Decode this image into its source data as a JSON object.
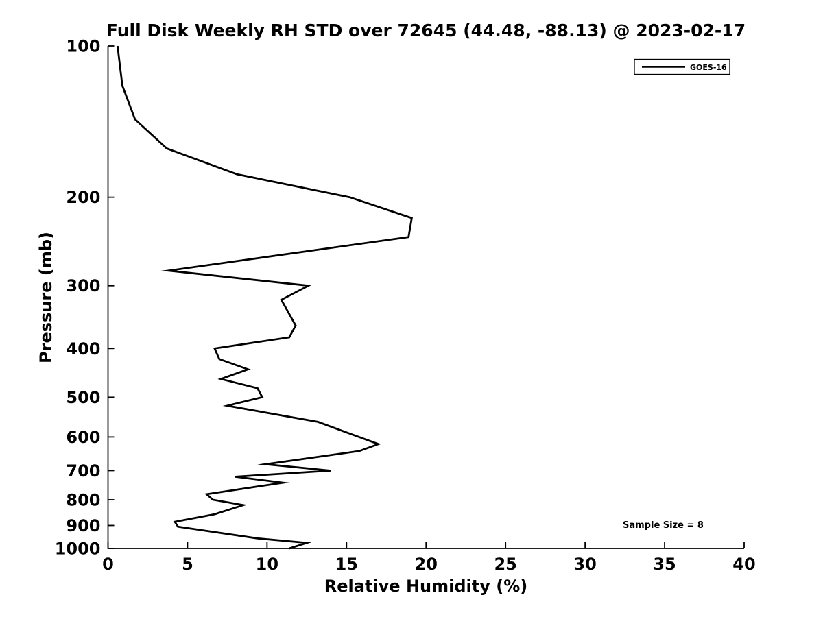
{
  "window": {
    "background": "#ffffff",
    "foreground": "#000000"
  },
  "chart_data": {
    "type": "line",
    "title": "Full Disk Weekly RH STD over 72645 (44.48, -88.13) @ 2023-02-17",
    "xlabel": "Relative Humidity (%)",
    "ylabel": "Pressure (mb)",
    "xlim": [
      0,
      40
    ],
    "xticks": [
      0,
      5,
      10,
      15,
      20,
      25,
      30,
      35,
      40
    ],
    "yscale": "log",
    "y_inverted": true,
    "ylim": [
      100,
      1000
    ],
    "yticks": [
      100,
      200,
      300,
      400,
      500,
      600,
      700,
      800,
      900,
      1000
    ],
    "grid": false,
    "axis_color": "#000000",
    "legend": {
      "position": "top-right",
      "entries": [
        {
          "label": "GOES-16",
          "color": "#000000"
        }
      ]
    },
    "annotation": {
      "text": "Sample Size = 8"
    },
    "series": [
      {
        "name": "GOES-16",
        "color": "#000000",
        "line_width": 2.8,
        "point_format": [
          "pressure_mb",
          "rh_std_pct"
        ],
        "points": [
          [
            100,
            0.6
          ],
          [
            120,
            0.9
          ],
          [
            140,
            1.7
          ],
          [
            160,
            3.7
          ],
          [
            180,
            8.1
          ],
          [
            200,
            15.2
          ],
          [
            220,
            19.1
          ],
          [
            240,
            18.9
          ],
          [
            280,
            3.8
          ],
          [
            300,
            12.6
          ],
          [
            320,
            10.9
          ],
          [
            360,
            11.8
          ],
          [
            380,
            11.4
          ],
          [
            400,
            6.7
          ],
          [
            420,
            7.0
          ],
          [
            440,
            8.8
          ],
          [
            460,
            7.1
          ],
          [
            480,
            9.4
          ],
          [
            500,
            9.7
          ],
          [
            520,
            7.5
          ],
          [
            560,
            13.2
          ],
          [
            620,
            17.0
          ],
          [
            640,
            15.8
          ],
          [
            680,
            9.9
          ],
          [
            700,
            14.0
          ],
          [
            720,
            8.0
          ],
          [
            740,
            11.0
          ],
          [
            780,
            6.2
          ],
          [
            800,
            6.6
          ],
          [
            820,
            8.5
          ],
          [
            855,
            6.7
          ],
          [
            885,
            4.2
          ],
          [
            905,
            4.4
          ],
          [
            955,
            9.4
          ],
          [
            975,
            12.5
          ],
          [
            1000,
            11.4
          ]
        ]
      }
    ]
  }
}
